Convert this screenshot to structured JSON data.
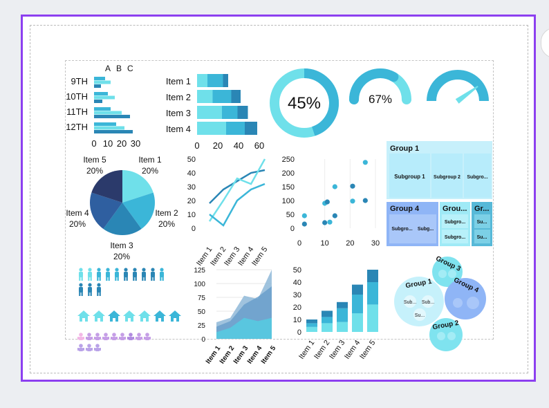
{
  "colors": {
    "light": "#6fe0ea",
    "mid": "#3bb6d8",
    "dark": "#2a86b5",
    "navy": "#2b3a6b",
    "royal": "#2f5fa0",
    "pale": "#c7f0fb",
    "blue_group": "#8fb5f6"
  },
  "chart_data": [
    {
      "type": "bar",
      "orientation": "horizontal",
      "categories": [
        "9TH",
        "10TH",
        "11TH",
        "12TH"
      ],
      "legend": [
        "A",
        "B",
        "C"
      ],
      "series": [
        {
          "name": "A",
          "values": [
            8,
            10,
            12,
            16
          ]
        },
        {
          "name": "B",
          "values": [
            12,
            15,
            20,
            22
          ]
        },
        {
          "name": "C",
          "values": [
            5,
            6,
            26,
            28
          ]
        }
      ],
      "xticks": [
        "0",
        "10",
        "20",
        "30"
      ],
      "xlim": [
        0,
        30
      ]
    },
    {
      "type": "bar",
      "orientation": "horizontal",
      "stacked": true,
      "categories": [
        "Item 1",
        "Item 2",
        "Item 3",
        "Item 4"
      ],
      "series": [
        {
          "values": [
            10,
            15,
            24,
            28
          ]
        },
        {
          "values": [
            15,
            18,
            15,
            18
          ]
        },
        {
          "values": [
            5,
            9,
            10,
            12
          ]
        }
      ],
      "xticks": [
        "0",
        "20",
        "40",
        "60"
      ],
      "xlim": [
        0,
        60
      ]
    },
    {
      "type": "donut",
      "value": 45,
      "label": "45%"
    },
    {
      "type": "gauge",
      "value": 67,
      "label": "67%"
    },
    {
      "type": "gauge",
      "value": 80,
      "label": ""
    },
    {
      "type": "pie",
      "slices": [
        {
          "label": "Item 1",
          "value": 20,
          "pct": "20%"
        },
        {
          "label": "Item 2",
          "value": 20,
          "pct": "20%"
        },
        {
          "label": "Item 3",
          "value": 20,
          "pct": "20%"
        },
        {
          "label": "Item 4",
          "value": 20,
          "pct": "20%"
        },
        {
          "label": "Item 5",
          "value": 20,
          "pct": "20%"
        }
      ]
    },
    {
      "type": "line",
      "categories": [
        "Item 1",
        "Item 2",
        "Item 3",
        "Item 4",
        "Item 5"
      ],
      "series": [
        {
          "values": [
            18,
            28,
            34,
            40,
            42
          ]
        },
        {
          "values": [
            5,
            20,
            36,
            32,
            50
          ]
        },
        {
          "values": [
            10,
            2,
            20,
            28,
            32
          ]
        }
      ],
      "yticks": [
        "0",
        "10",
        "20",
        "30",
        "40",
        "50"
      ],
      "ylim": [
        0,
        50
      ]
    },
    {
      "type": "scatter",
      "points": [
        [
          2,
          15
        ],
        [
          2,
          45
        ],
        [
          10,
          20
        ],
        [
          10,
          90
        ],
        [
          11,
          95
        ],
        [
          12,
          22
        ],
        [
          14,
          45
        ],
        [
          14,
          150
        ],
        [
          21,
          152
        ],
        [
          21,
          98
        ],
        [
          26,
          100
        ],
        [
          26,
          238
        ]
      ],
      "xticks": [
        "0",
        "10",
        "20",
        "30"
      ],
      "yticks": [
        "0",
        "50",
        "100",
        "150",
        "200",
        "250"
      ],
      "xlim": [
        0,
        30
      ],
      "ylim": [
        0,
        250
      ]
    },
    {
      "type": "area",
      "categories": [
        "Item 1",
        "Item 2",
        "Item 3",
        "Item 4",
        "Item 5"
      ],
      "series": [
        {
          "values": [
            30,
            38,
            78,
            72,
            125
          ]
        },
        {
          "values": [
            22,
            32,
            62,
            76,
            95
          ]
        },
        {
          "values": [
            12,
            20,
            38,
            32,
            38
          ]
        }
      ],
      "yticks": [
        "0",
        "25",
        "50",
        "75",
        "100",
        "125"
      ],
      "ylim": [
        0,
        125
      ]
    },
    {
      "type": "bar",
      "stacked": true,
      "categories": [
        "Item 1",
        "Item 2",
        "Item 3",
        "Item 4",
        "Item 5"
      ],
      "series": [
        {
          "values": [
            4,
            7,
            8,
            15,
            22
          ]
        },
        {
          "values": [
            3,
            5,
            11,
            15,
            18
          ]
        },
        {
          "values": [
            3,
            5,
            5,
            8,
            10
          ]
        }
      ],
      "yticks": [
        "0",
        "10",
        "20",
        "30",
        "40",
        "50"
      ],
      "ylim": [
        0,
        50
      ]
    },
    {
      "type": "treemap",
      "groups": [
        {
          "name": "Group 1",
          "subgroups": [
            "Subgroup 1",
            "Subgroup 2",
            "Subgro..."
          ]
        },
        {
          "name": "Group 4",
          "subgroups": [
            "Subgro...",
            "Subg..."
          ]
        },
        {
          "name": "Grou...",
          "subgroups": [
            "Subgro...",
            "Subgro..."
          ]
        },
        {
          "name": "Gr...",
          "subgroups": [
            "Su...",
            "Su..."
          ]
        }
      ]
    },
    {
      "type": "bubble",
      "groups": [
        {
          "name": "Group 1",
          "subs": [
            "Sub...",
            "Sub...",
            "Su..."
          ]
        },
        {
          "name": "Group 3",
          "subs": []
        },
        {
          "name": "Group 4",
          "subs": []
        },
        {
          "name": "Group 2",
          "subs": []
        }
      ]
    }
  ]
}
